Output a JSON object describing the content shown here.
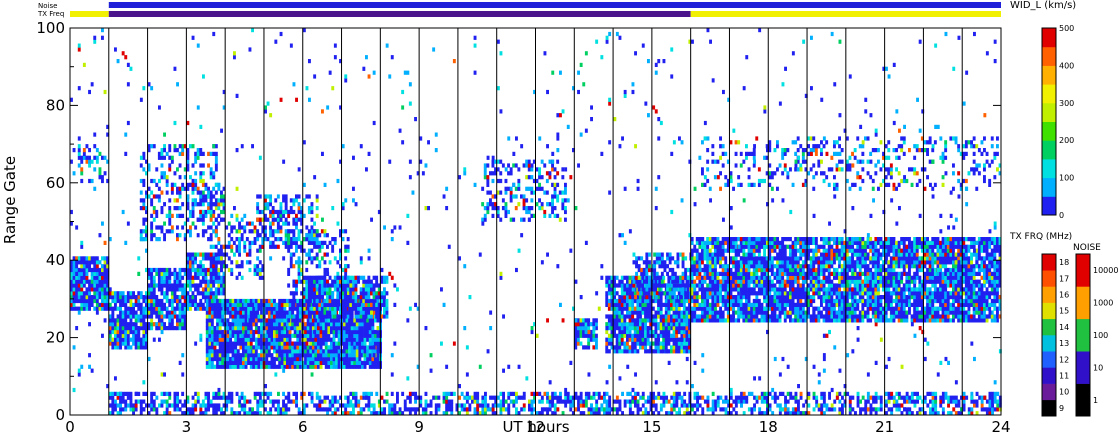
{
  "chart_data": {
    "type": "heatmap",
    "xlabel": "UT hours",
    "ylabel": "Range Gate",
    "xlim": [
      0,
      24
    ],
    "ylim": [
      0,
      100
    ],
    "x_ticks": [
      "0",
      "3",
      "6",
      "9",
      "12",
      "15",
      "18",
      "21",
      "24"
    ],
    "x_tick_values": [
      0,
      3,
      6,
      9,
      12,
      15,
      18,
      21,
      24
    ],
    "y_ticks": [
      "0",
      "20",
      "40",
      "60",
      "80",
      "100"
    ],
    "y_tick_values": [
      0,
      20,
      40,
      60,
      80,
      100
    ],
    "hour_gridlines": [
      1,
      2,
      3,
      4,
      5,
      6,
      7,
      8,
      9,
      10,
      11,
      12,
      13,
      14,
      15,
      16,
      17,
      18,
      19,
      20,
      21,
      22,
      23
    ],
    "strips": {
      "noise_label": "Noise",
      "txfreq_label": "TX Freq",
      "noise_color": "#2020d8",
      "txfreq_segments": [
        {
          "start": 0,
          "end": 1,
          "color": "#f0f000"
        },
        {
          "start": 1,
          "end": 16,
          "color": "#4a148c"
        },
        {
          "start": 16,
          "end": 24,
          "color": "#f0f000"
        }
      ]
    },
    "colorbar_width": {
      "title": "WID_L (km/s)",
      "ticks": [
        "0",
        "100",
        "200",
        "300",
        "400",
        "500"
      ],
      "tick_values": [
        0,
        100,
        200,
        300,
        400,
        500
      ],
      "range": [
        0,
        500
      ],
      "colors": [
        "#2020f0",
        "#00b0ff",
        "#00e0e0",
        "#00d060",
        "#40e000",
        "#c0f000",
        "#f0f000",
        "#ffb000",
        "#ff6000",
        "#e00000"
      ]
    },
    "colorbar_freq": {
      "title": "TX FRQ (MHz)",
      "labels": [
        "9",
        "10",
        "11",
        "12",
        "13",
        "14",
        "15",
        "16",
        "17",
        "18"
      ],
      "colors": [
        "#000000",
        "#6a1b9a",
        "#3010c8",
        "#2060ff",
        "#00c0e0",
        "#20c040",
        "#e0e000",
        "#ffa000",
        "#ff5000",
        "#e00000"
      ]
    },
    "colorbar_noise": {
      "title": "NOISE",
      "labels": [
        "1",
        "10",
        "100",
        "1000",
        "10000"
      ],
      "colors": [
        "#000000",
        "#3010c8",
        "#20c040",
        "#ffa000",
        "#e00000"
      ]
    },
    "regions": [
      {
        "x0": 0,
        "x1": 1,
        "y0": 27,
        "y1": 41,
        "density": 0.9
      },
      {
        "x0": 0,
        "x1": 1,
        "y0": 60,
        "y1": 70,
        "density": 0.3
      },
      {
        "x0": 1,
        "x1": 2,
        "y0": 17,
        "y1": 32,
        "density": 0.85
      },
      {
        "x0": 2,
        "x1": 3,
        "y0": 22,
        "y1": 38,
        "density": 0.85
      },
      {
        "x0": 3,
        "x1": 4,
        "y0": 27,
        "y1": 42,
        "density": 0.8
      },
      {
        "x0": 1.8,
        "x1": 3.8,
        "y0": 45,
        "y1": 70,
        "density": 0.35
      },
      {
        "x0": 3,
        "x1": 4,
        "y0": 50,
        "y1": 60,
        "density": 0.4
      },
      {
        "x0": 3.6,
        "x1": 5,
        "y0": 35,
        "y1": 52,
        "density": 0.35
      },
      {
        "x0": 4.8,
        "x1": 6.4,
        "y0": 43,
        "y1": 57,
        "density": 0.5
      },
      {
        "x0": 5.6,
        "x1": 7.2,
        "y0": 30,
        "y1": 48,
        "density": 0.35
      },
      {
        "x0": 3.5,
        "x1": 8.0,
        "y0": 12,
        "y1": 30,
        "density": 0.95
      },
      {
        "x0": 6,
        "x1": 8.2,
        "y0": 25,
        "y1": 36,
        "density": 0.8
      },
      {
        "x0": 10.6,
        "x1": 12.8,
        "y0": 50,
        "y1": 66,
        "density": 0.35
      },
      {
        "x0": 13,
        "x1": 13.6,
        "y0": 17,
        "y1": 25,
        "density": 0.7
      },
      {
        "x0": 13.8,
        "x1": 16,
        "y0": 16,
        "y1": 36,
        "density": 0.9
      },
      {
        "x0": 14.5,
        "x1": 16,
        "y0": 30,
        "y1": 42,
        "density": 0.5
      },
      {
        "x0": 16,
        "x1": 24,
        "y0": 24,
        "y1": 46,
        "density": 0.88
      },
      {
        "x0": 16.2,
        "x1": 24,
        "y0": 58,
        "y1": 72,
        "density": 0.2
      },
      {
        "x0": 1,
        "x1": 24,
        "y0": 0,
        "y1": 6,
        "density": 0.55
      },
      {
        "x0": 0,
        "x1": 24,
        "y0": 0,
        "y1": 100,
        "density": 0.02
      }
    ]
  }
}
